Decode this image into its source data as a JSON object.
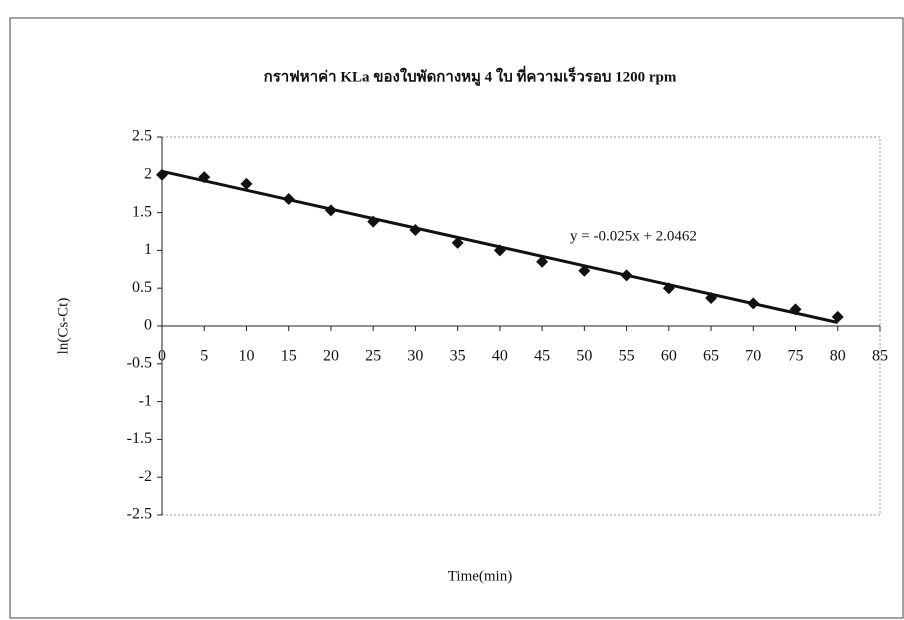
{
  "chart_data": {
    "type": "scatter",
    "title": "กราฟหาค่า KLa ของใบพัดกางหมู 4 ใบ ที่ความเร็วรอบ 1200 rpm",
    "x_label": "Time(min)",
    "y_label": "ln(Cs-Ct)",
    "x": [
      0,
      5,
      10,
      15,
      20,
      25,
      30,
      35,
      40,
      45,
      50,
      55,
      60,
      65,
      70,
      75,
      80
    ],
    "values": [
      2.0,
      1.97,
      1.88,
      1.68,
      1.53,
      1.38,
      1.27,
      1.1,
      1.0,
      0.85,
      0.73,
      0.67,
      0.5,
      0.37,
      0.3,
      0.22,
      0.12
    ],
    "color": "#111111",
    "trendline": {
      "slope": -0.025,
      "intercept": 2.0462,
      "label": "y = -0.025x + 2.0462"
    },
    "xlim": [
      0,
      85
    ],
    "xticks": [
      0,
      5,
      10,
      15,
      20,
      25,
      30,
      35,
      40,
      45,
      50,
      55,
      60,
      65,
      70,
      75,
      80,
      85
    ],
    "ylim": [
      -2.5,
      2.5
    ],
    "yticks": [
      -2.5,
      -2,
      -1.5,
      -1,
      -0.5,
      0,
      0.5,
      1,
      1.5,
      2,
      2.5
    ]
  }
}
